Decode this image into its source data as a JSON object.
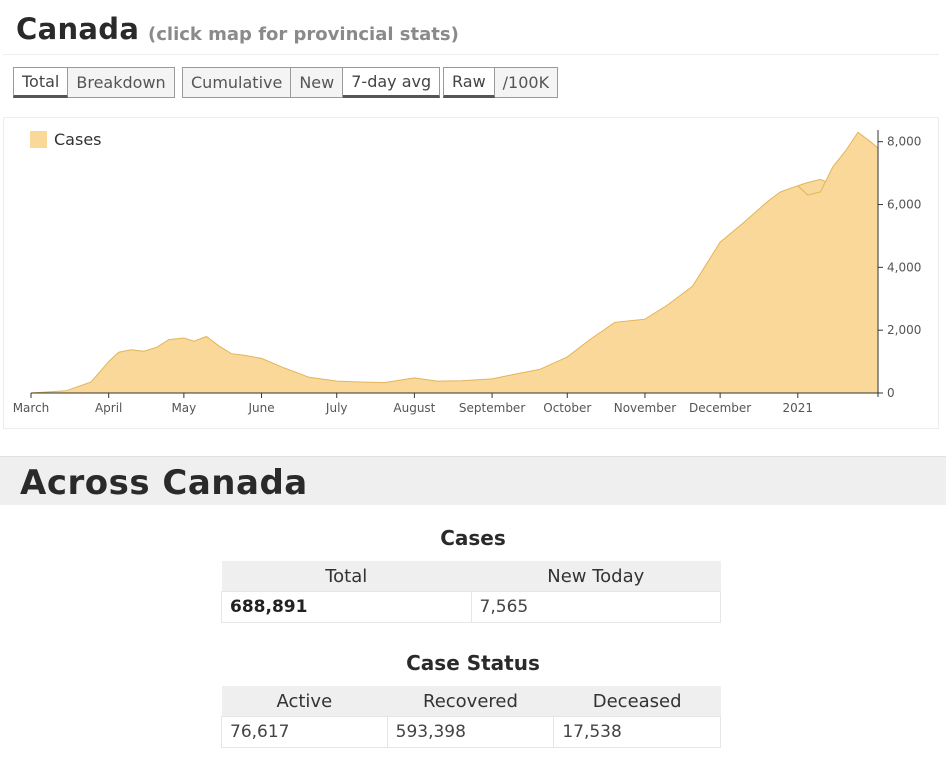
{
  "header": {
    "title": "Canada",
    "subtitle": "(click map for provincial stats)"
  },
  "toggles": {
    "group1": [
      {
        "label": "Total",
        "active": true
      },
      {
        "label": "Breakdown",
        "active": false
      }
    ],
    "group2": [
      {
        "label": "Cumulative",
        "active": false
      },
      {
        "label": "New",
        "active": false
      },
      {
        "label": "7-day avg",
        "active": true
      }
    ],
    "group3": [
      {
        "label": "Raw",
        "active": true
      },
      {
        "label": "/100K",
        "active": false
      }
    ]
  },
  "chart_data": {
    "type": "area",
    "legend": [
      "Cases"
    ],
    "legend_position": "top-left",
    "color": "#f9d89a",
    "stroke": "#e2b558",
    "x_labels": [
      "March",
      "April",
      "May",
      "June",
      "July",
      "August",
      "September",
      "October",
      "November",
      "December",
      "2021"
    ],
    "y_ticks": [
      "0",
      "2,000",
      "4,000",
      "6,000",
      "8,000"
    ],
    "ylim": [
      0,
      8500
    ],
    "grid": false,
    "series": [
      {
        "x": [
          "2020-03-01",
          "2020-03-15",
          "2020-03-25",
          "2020-04-01",
          "2020-04-05",
          "2020-04-10",
          "2020-04-15",
          "2020-04-20",
          "2020-04-25",
          "2020-05-01",
          "2020-05-05",
          "2020-05-10",
          "2020-05-15",
          "2020-05-20",
          "2020-05-25",
          "2020-06-01",
          "2020-06-10",
          "2020-06-20",
          "2020-07-01",
          "2020-07-10",
          "2020-07-20",
          "2020-08-01",
          "2020-08-10",
          "2020-08-20",
          "2020-09-01",
          "2020-09-10",
          "2020-09-20",
          "2020-10-01",
          "2020-10-10",
          "2020-10-20",
          "2020-11-01",
          "2020-11-10",
          "2020-11-20",
          "2020-12-01",
          "2020-12-10",
          "2020-12-20",
          "2020-12-25",
          "2021-01-01",
          "2021-01-05",
          "2021-01-10",
          "2021-01-13"
        ],
        "y": [
          0,
          70,
          350,
          1000,
          1300,
          1380,
          1330,
          1450,
          1700,
          1750,
          1650,
          1800,
          1500,
          1250,
          1200,
          1100,
          800,
          500,
          380,
          350,
          330,
          480,
          380,
          390,
          450,
          600,
          750,
          1150,
          1700,
          2250,
          2350,
          2800,
          3400,
          4800,
          5400,
          6100,
          6400,
          6600,
          6700,
          6800,
          6700
        ]
      },
      {
        "x": [
          "2021-01-01",
          "2021-01-05",
          "2021-01-10",
          "2021-01-15",
          "2021-01-20",
          "2021-01-25",
          "2021-01-30",
          "2021-02-02"
        ],
        "y": [
          6600,
          6300,
          6400,
          7200,
          7700,
          8300,
          8000,
          7800
        ]
      }
    ]
  },
  "across": {
    "title": "Across Canada",
    "cases": {
      "title": "Cases",
      "headers": [
        "Total",
        "New Today"
      ],
      "values": [
        "688,891",
        "7,565"
      ]
    },
    "status": {
      "title": "Case Status",
      "headers": [
        "Active",
        "Recovered",
        "Deceased"
      ],
      "values": [
        "76,617",
        "593,398",
        "17,538"
      ]
    }
  }
}
